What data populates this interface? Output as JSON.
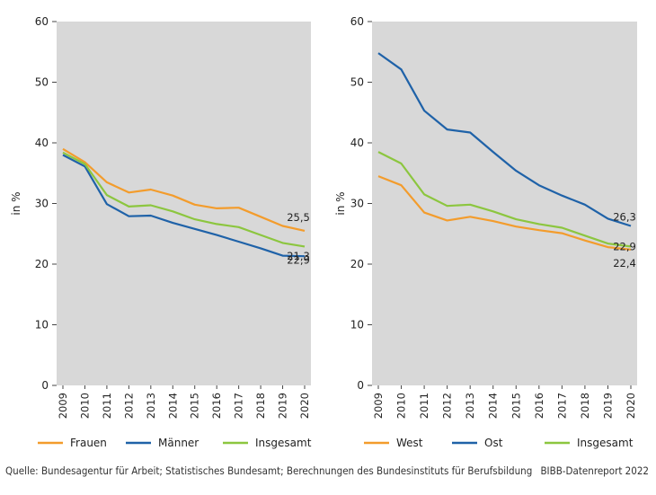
{
  "chart_data": [
    {
      "type": "line",
      "ylabel": "in %",
      "ylim": [
        0,
        60
      ],
      "yticks": [
        0,
        10,
        20,
        30,
        40,
        50,
        60
      ],
      "grid": false,
      "categories": [
        "2009",
        "2010",
        "2011",
        "2012",
        "2013",
        "2014",
        "2015",
        "2016",
        "2017",
        "2018",
        "2019",
        "2020"
      ],
      "series": [
        {
          "name": "Frauen",
          "color": "#f39c2c",
          "values": [
            39.0,
            36.8,
            33.5,
            31.8,
            32.3,
            31.3,
            29.8,
            29.2,
            29.3,
            27.8,
            26.3,
            25.5
          ],
          "end_label": "25,5"
        },
        {
          "name": "Männer",
          "color": "#1f62a8",
          "values": [
            38.0,
            36.1,
            29.9,
            27.9,
            28.0,
            26.8,
            25.8,
            24.8,
            23.7,
            22.6,
            21.4,
            21.3
          ],
          "end_label": "21,3"
        },
        {
          "name": "Insgesamt",
          "color": "#8cc63f",
          "values": [
            38.4,
            36.5,
            31.4,
            29.5,
            29.7,
            28.7,
            27.4,
            26.6,
            26.1,
            24.8,
            23.5,
            22.9
          ],
          "end_label": "22,9"
        }
      ]
    },
    {
      "type": "line",
      "ylabel": "in %",
      "ylim": [
        0,
        60
      ],
      "yticks": [
        0,
        10,
        20,
        30,
        40,
        50,
        60
      ],
      "grid": false,
      "categories": [
        "2009",
        "2010",
        "2011",
        "2012",
        "2013",
        "2014",
        "2015",
        "2016",
        "2017",
        "2018",
        "2019",
        "2020"
      ],
      "series": [
        {
          "name": "West",
          "color": "#f39c2c",
          "values": [
            34.5,
            33.0,
            28.5,
            27.2,
            27.8,
            27.1,
            26.2,
            25.6,
            25.1,
            23.9,
            22.8,
            22.4
          ],
          "end_label": "22,4"
        },
        {
          "name": "Ost",
          "color": "#1f62a8",
          "values": [
            54.8,
            52.1,
            45.3,
            42.2,
            41.7,
            38.5,
            35.4,
            33.0,
            31.3,
            29.8,
            27.5,
            26.3
          ],
          "end_label": "26,3"
        },
        {
          "name": "Insgesamt",
          "color": "#8cc63f",
          "values": [
            38.5,
            36.6,
            31.5,
            29.6,
            29.8,
            28.7,
            27.4,
            26.6,
            26.0,
            24.7,
            23.4,
            22.9
          ],
          "end_label": "22,9"
        }
      ]
    }
  ],
  "footer": {
    "source": "Quelle: Bundesagentur für Arbeit; Statistisches Bundesamt; Berechnungen des Bundesinstituts für Berufsbildung",
    "credit": "BIBB-Datenreport 2022"
  }
}
